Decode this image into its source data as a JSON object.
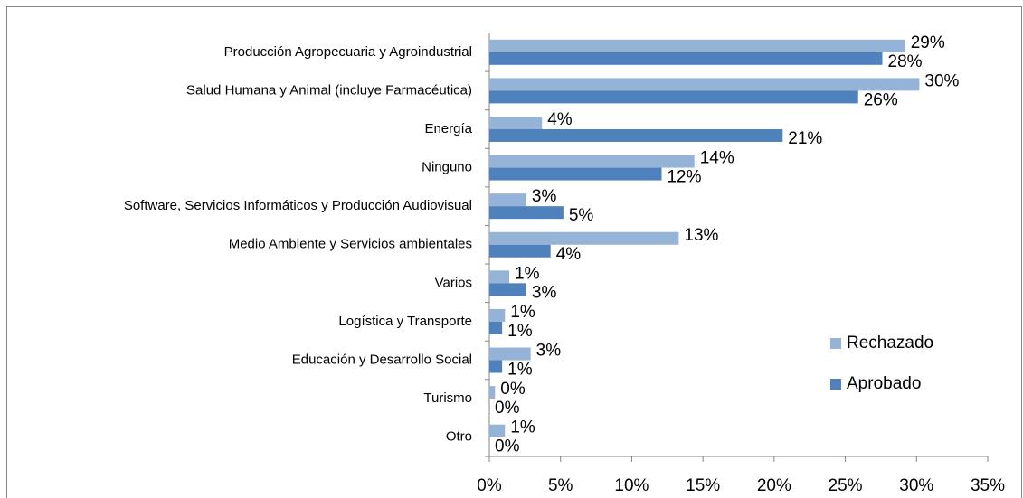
{
  "chart_data": {
    "type": "hbar",
    "categories": [
      "Producción Agropecuaria y Agroindustrial",
      "Salud Humana y Animal (incluye Farmacéutica)",
      "Energía",
      "Ninguno",
      "Software, Servicios Informáticos y Producción Audiovisual",
      "Medio Ambiente y Servicios ambientales",
      "Varios",
      "Logística y Transporte",
      "Educación y Desarrollo Social",
      "Turismo",
      "Otro"
    ],
    "series": [
      {
        "name": "Rechazado",
        "color": "#95b3d7",
        "values": [
          29.2,
          30.2,
          3.7,
          14.4,
          2.6,
          13.3,
          1.4,
          1.1,
          2.9,
          0.4,
          1.1
        ],
        "value_labels": [
          "29%",
          "30%",
          "4%",
          "14%",
          "3%",
          "13%",
          "1%",
          "1%",
          "3%",
          "0%",
          "1%"
        ]
      },
      {
        "name": "Aprobado",
        "color": "#4f81bd",
        "values": [
          27.6,
          25.9,
          20.6,
          12.1,
          5.2,
          4.3,
          2.6,
          0.9,
          0.9,
          0,
          0
        ],
        "value_labels": [
          "28%",
          "26%",
          "21%",
          "12%",
          "5%",
          "4%",
          "3%",
          "1%",
          "1%",
          "0%",
          "0%"
        ]
      }
    ],
    "xlim": [
      0,
      35
    ],
    "xticks": [
      {
        "value": 0,
        "label": "0%"
      },
      {
        "value": 5,
        "label": "5%"
      },
      {
        "value": 10,
        "label": "10%"
      },
      {
        "value": 15,
        "label": "15%"
      },
      {
        "value": 20,
        "label": "20%"
      },
      {
        "value": 25,
        "label": "25%"
      },
      {
        "value": 30,
        "label": "30%"
      },
      {
        "value": 35,
        "label": "35%"
      }
    ],
    "legend": "right"
  }
}
